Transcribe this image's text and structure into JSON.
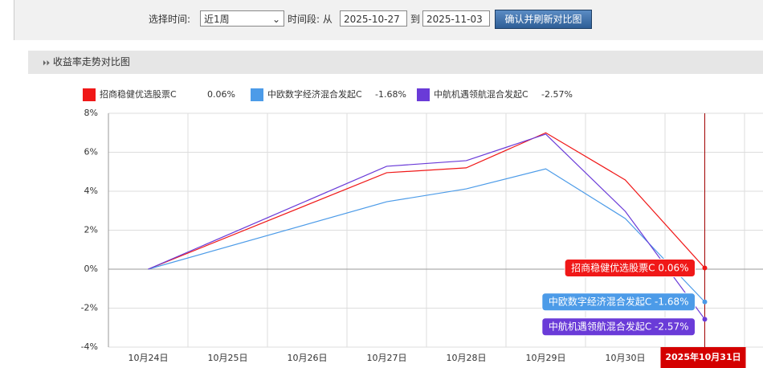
{
  "controls": {
    "time_label": "选择时间:",
    "period_select": "近1周",
    "range_label": "时间段: 从",
    "start_date": "2025-10-27",
    "to_label": "到",
    "end_date": "2025-11-03",
    "button": "确认并刷新对比图"
  },
  "section_title": "收益率走势对比图",
  "chart_data": {
    "type": "line",
    "categories": [
      "10月24日",
      "10月25日",
      "10月26日",
      "10月27日",
      "10月28日",
      "10月29日",
      "10月30日",
      "2025年10月31日"
    ],
    "series": [
      {
        "name": "招商稳健优选股票C",
        "color": "#f01818",
        "values": [
          0,
          null,
          null,
          4.95,
          5.2,
          7.0,
          4.58,
          0.06
        ],
        "value_labels": [
          null,
          null,
          null,
          null,
          null,
          null,
          null,
          "0.06%"
        ]
      },
      {
        "name": "中欧数字经济混合发起C",
        "color": "#4c9be8",
        "values": [
          0,
          null,
          null,
          3.46,
          4.12,
          5.15,
          2.6,
          -1.68
        ],
        "value_labels": [
          null,
          null,
          null,
          null,
          null,
          null,
          null,
          "-1.68%"
        ]
      },
      {
        "name": "中航机遇领航混合发起C",
        "color": "#6a3bd8",
        "values": [
          0,
          null,
          null,
          5.28,
          5.57,
          6.93,
          2.97,
          -2.57
        ],
        "value_labels": [
          null,
          null,
          null,
          null,
          null,
          null,
          null,
          "-2.57%"
        ]
      }
    ],
    "ylim": [
      -4,
      8
    ],
    "yticks": [
      {
        "value": -4,
        "label": "-4%"
      },
      {
        "value": -2,
        "label": "-2%"
      },
      {
        "value": 0,
        "label": "0%"
      },
      {
        "value": 2,
        "label": "2%"
      },
      {
        "value": 4,
        "label": "4%"
      },
      {
        "value": 6,
        "label": "6%"
      },
      {
        "value": 8,
        "label": "8%"
      }
    ],
    "grid": true
  }
}
